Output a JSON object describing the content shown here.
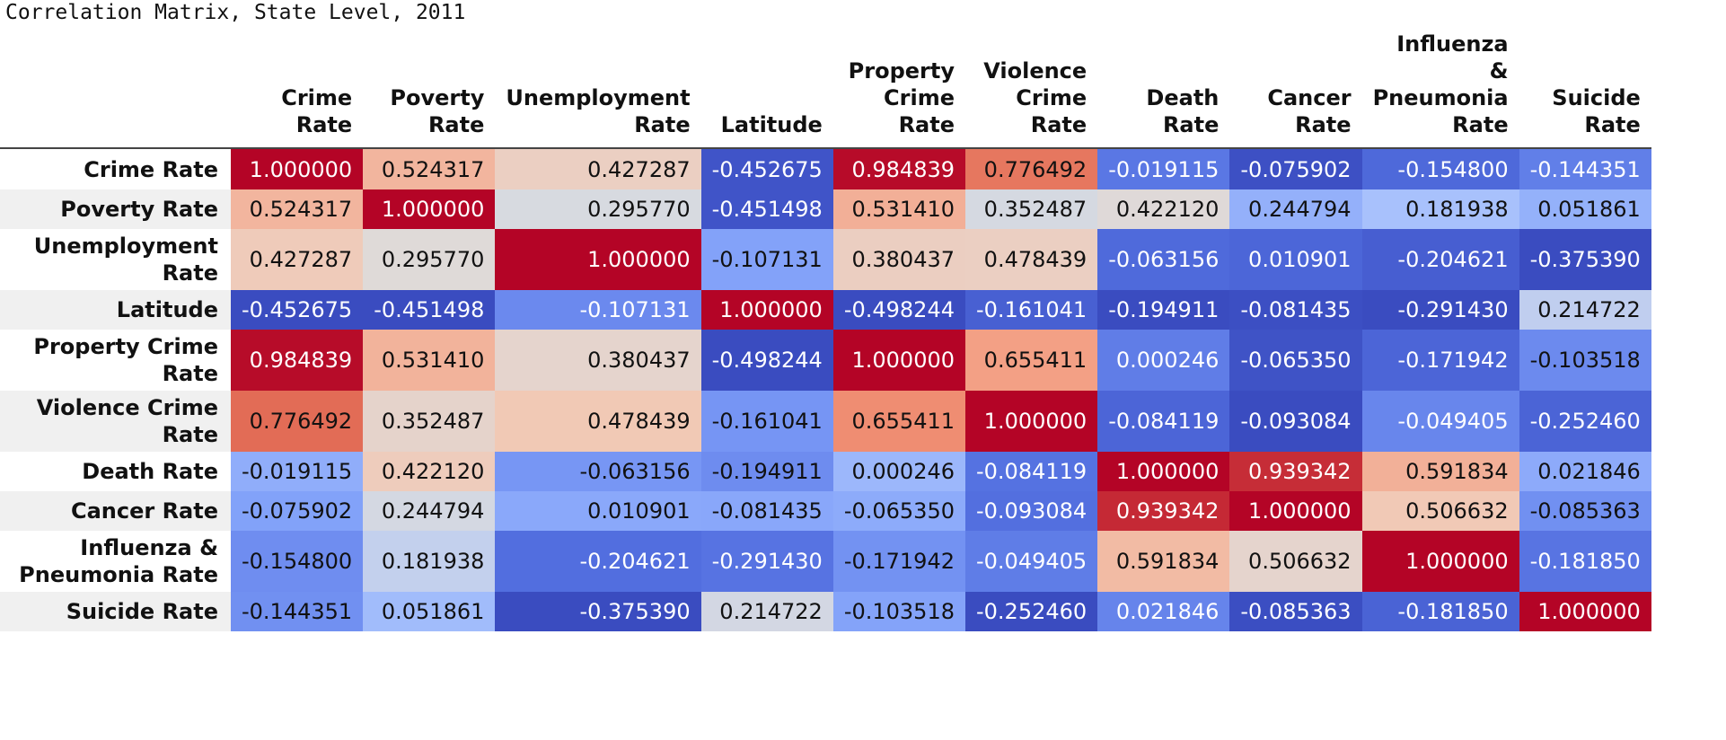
{
  "caption": "Correlation Matrix, State Level, 2011",
  "chart_data": {
    "type": "table",
    "title": "Correlation Matrix, State Level, 2011",
    "columns": [
      [
        "Crime",
        "Rate"
      ],
      [
        "Poverty",
        "Rate"
      ],
      [
        "Unemployment",
        "Rate"
      ],
      [
        "Latitude"
      ],
      [
        "Property",
        "Crime Rate"
      ],
      [
        "Violence",
        "Crime Rate"
      ],
      [
        "Death",
        "Rate"
      ],
      [
        "Cancer",
        "Rate"
      ],
      [
        "Influenza &",
        "Pneumonia",
        "Rate"
      ],
      [
        "Suicide",
        "Rate"
      ]
    ],
    "rows": [
      [
        "Crime Rate"
      ],
      [
        "Poverty Rate"
      ],
      [
        "Unemployment",
        "Rate"
      ],
      [
        "Latitude"
      ],
      [
        "Property Crime",
        "Rate"
      ],
      [
        "Violence Crime",
        "Rate"
      ],
      [
        "Death Rate"
      ],
      [
        "Cancer Rate"
      ],
      [
        "Influenza &",
        "Pneumonia Rate"
      ],
      [
        "Suicide Rate"
      ]
    ],
    "values": [
      [
        "1.000000",
        "0.524317",
        "0.427287",
        "-0.452675",
        "0.984839",
        "0.776492",
        "-0.019115",
        "-0.075902",
        "-0.154800",
        "-0.144351"
      ],
      [
        "0.524317",
        "1.000000",
        "0.295770",
        "-0.451498",
        "0.531410",
        "0.352487",
        "0.422120",
        "0.244794",
        "0.181938",
        "0.051861"
      ],
      [
        "0.427287",
        "0.295770",
        "1.000000",
        "-0.107131",
        "0.380437",
        "0.478439",
        "-0.063156",
        "0.010901",
        "-0.204621",
        "-0.375390"
      ],
      [
        "-0.452675",
        "-0.451498",
        "-0.107131",
        "1.000000",
        "-0.498244",
        "-0.161041",
        "-0.194911",
        "-0.081435",
        "-0.291430",
        "0.214722"
      ],
      [
        "0.984839",
        "0.531410",
        "0.380437",
        "-0.498244",
        "1.000000",
        "0.655411",
        "0.000246",
        "-0.065350",
        "-0.171942",
        "-0.103518"
      ],
      [
        "0.776492",
        "0.352487",
        "0.478439",
        "-0.161041",
        "0.655411",
        "1.000000",
        "-0.084119",
        "-0.093084",
        "-0.049405",
        "-0.252460"
      ],
      [
        "-0.019115",
        "0.422120",
        "-0.063156",
        "-0.194911",
        "0.000246",
        "-0.084119",
        "1.000000",
        "0.939342",
        "0.591834",
        "0.021846"
      ],
      [
        "-0.075902",
        "0.244794",
        "0.010901",
        "-0.081435",
        "-0.065350",
        "-0.093084",
        "0.939342",
        "1.000000",
        "0.506632",
        "-0.085363"
      ],
      [
        "-0.154800",
        "0.181938",
        "-0.204621",
        "-0.291430",
        "-0.171942",
        "-0.049405",
        "0.591834",
        "0.506632",
        "1.000000",
        "-0.181850"
      ],
      [
        "-0.144351",
        "0.051861",
        "-0.375390",
        "0.214722",
        "-0.103518",
        "-0.252460",
        "0.021846",
        "-0.085363",
        "-0.181850",
        "1.000000"
      ]
    ],
    "colormap": "coolwarm"
  }
}
